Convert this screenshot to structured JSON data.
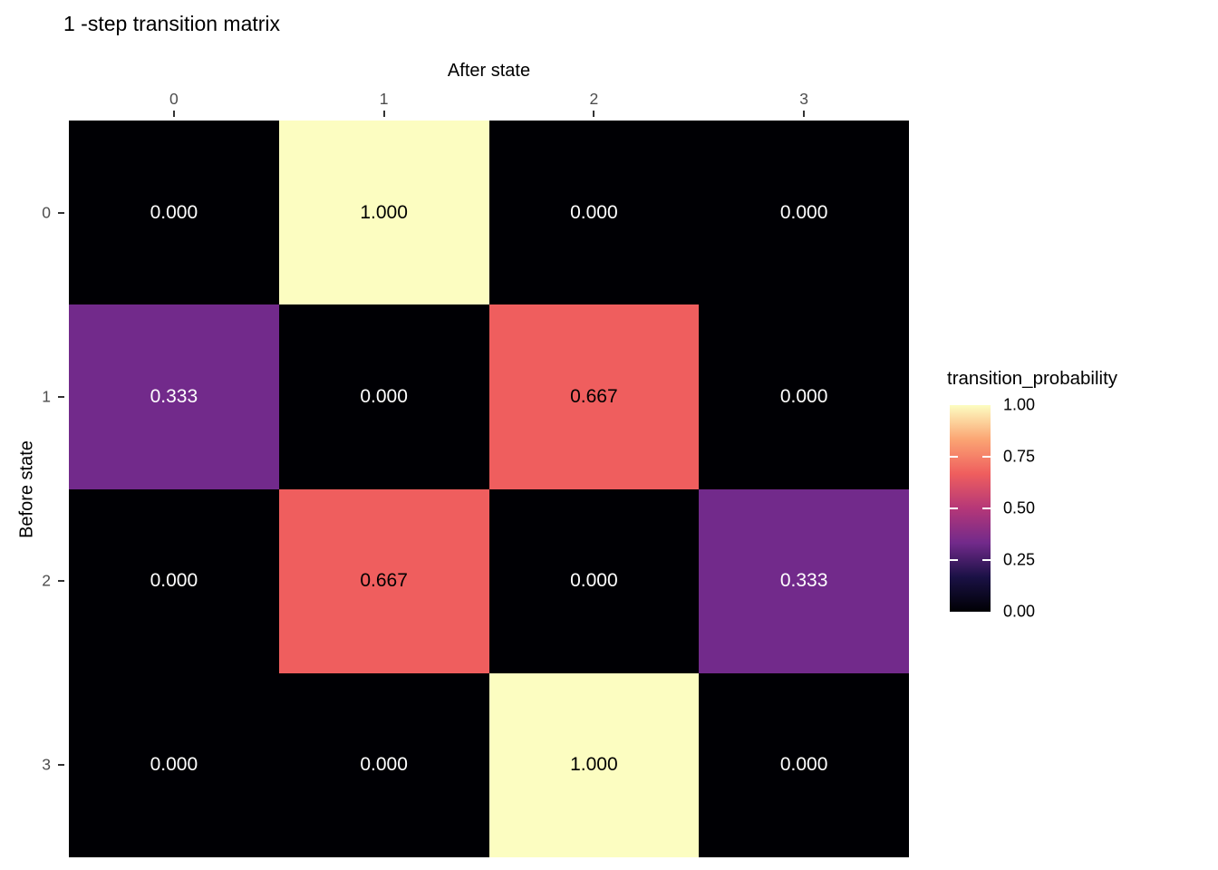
{
  "title": "1 -step transition matrix",
  "chart_data": {
    "type": "heatmap",
    "title": "1 -step transition matrix",
    "xlabel": "After state",
    "ylabel": "Before state",
    "x_ticks": [
      "0",
      "1",
      "2",
      "3"
    ],
    "y_ticks": [
      "0",
      "1",
      "2",
      "3"
    ],
    "matrix": [
      [
        0.0,
        1.0,
        0.0,
        0.0
      ],
      [
        0.333,
        0.0,
        0.667,
        0.0
      ],
      [
        0.0,
        0.667,
        0.0,
        0.333
      ],
      [
        0.0,
        0.0,
        1.0,
        0.0
      ]
    ],
    "cell_labels": [
      [
        "0.000",
        "1.000",
        "0.000",
        "0.000"
      ],
      [
        "0.333",
        "0.000",
        "0.667",
        "0.000"
      ],
      [
        "0.000",
        "0.667",
        "0.000",
        "0.333"
      ],
      [
        "0.000",
        "0.000",
        "1.000",
        "0.000"
      ]
    ],
    "legend": {
      "title": "transition_probability",
      "tick_labels": [
        "1.00",
        "0.75",
        "0.50",
        "0.25",
        "0.00"
      ],
      "tick_values": [
        1.0,
        0.75,
        0.5,
        0.25,
        0.0
      ],
      "range": [
        0,
        1
      ],
      "position": "right"
    },
    "grid": "off",
    "colormap": "magma"
  },
  "colors": {
    "background": "#ffffff",
    "title_text": "#000000",
    "axis_title_text": "#000000",
    "axis_tick_label": "#4d4d4d",
    "axis_tick_mark": "#333333",
    "legend_tick_mark": "#ffffff",
    "value_fill": {
      "0.000": "#000004",
      "0.333": "#722a8b",
      "0.667": "#ef5e5e",
      "1.000": "#fcfdc1"
    },
    "value_text": {
      "0.000": "#ffffff",
      "0.333": "#ffffff",
      "0.667": "#000000",
      "1.000": "#000000"
    },
    "gradient_stops": [
      "#000004 0%",
      "#1a1145 16.7%",
      "#722a8b 33.3%",
      "#b53778 50%",
      "#ef5e5e 66.7%",
      "#fba473 83.3%",
      "#fcfdc1 100%"
    ]
  }
}
